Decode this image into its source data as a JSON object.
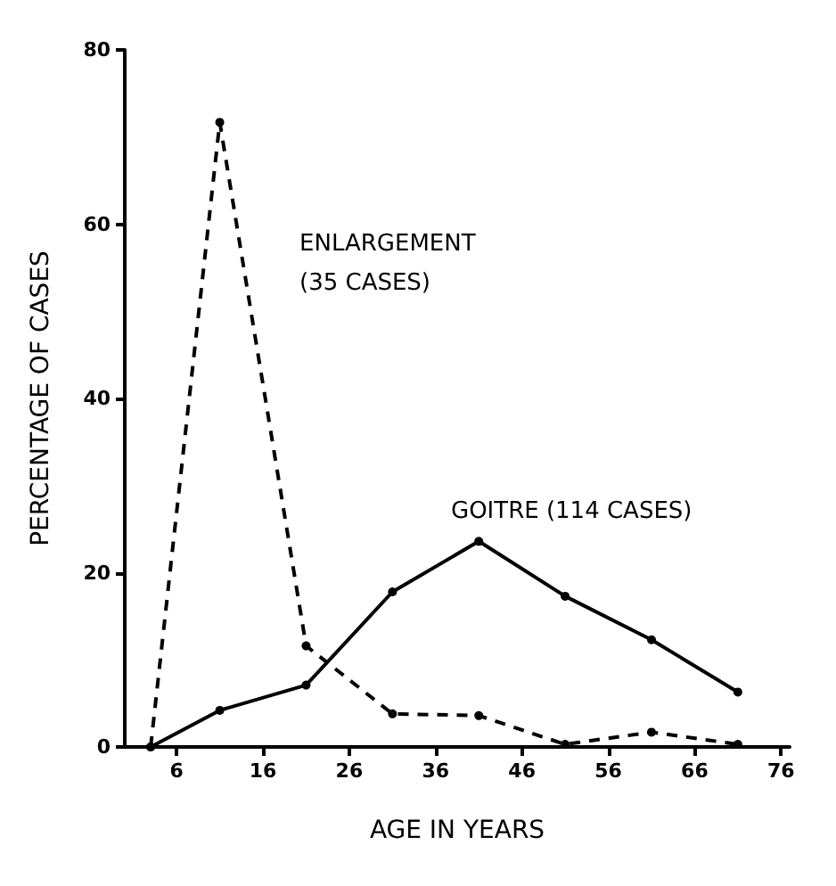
{
  "chart_data": {
    "type": "line",
    "xlabel": "AGE IN YEARS",
    "ylabel": "PERCENTAGE OF CASES",
    "x": [
      3,
      11,
      21,
      31,
      41,
      51,
      61,
      71
    ],
    "series": [
      {
        "name": "ENLARGEMENT (35 CASES)",
        "color": "#000000",
        "line_style": "dashed",
        "values": [
          0,
          71.7,
          11.6,
          3.8,
          3.6,
          0.3,
          1.7,
          0.3
        ]
      },
      {
        "name": "GOITRE (114 CASES)",
        "color": "#000000",
        "line_style": "solid",
        "values": [
          0,
          4.2,
          7.1,
          17.8,
          23.6,
          17.3,
          12.3,
          6.3
        ]
      }
    ],
    "xlim": [
      0,
      77
    ],
    "xticks": [
      6,
      16,
      26,
      36,
      46,
      56,
      66,
      76
    ],
    "ylim": [
      0,
      80
    ],
    "yticks": [
      0,
      20,
      40,
      60,
      80
    ],
    "marker": "circle",
    "grid": false
  }
}
